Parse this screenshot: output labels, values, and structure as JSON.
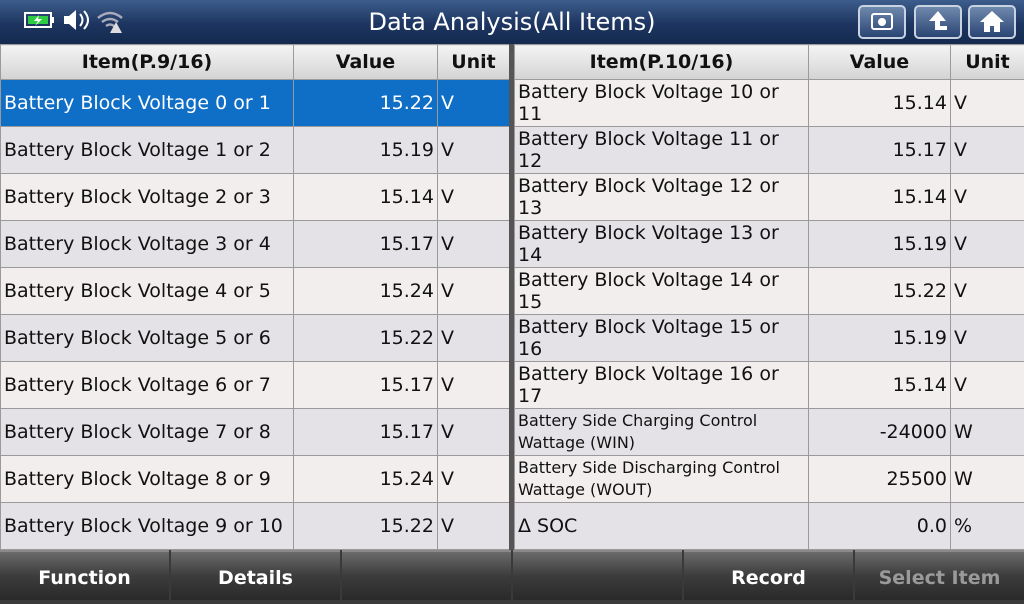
{
  "header": {
    "title": "Data Analysis(All Items)"
  },
  "tables": [
    {
      "headers": [
        "Item(P.9/16)",
        "Value",
        "Unit"
      ],
      "rows": [
        [
          "Battery Block Voltage 0 or 1",
          "15.22",
          "V"
        ],
        [
          "Battery Block Voltage 1 or 2",
          "15.19",
          "V"
        ],
        [
          "Battery Block Voltage 2 or 3",
          "15.14",
          "V"
        ],
        [
          "Battery Block Voltage 3 or 4",
          "15.17",
          "V"
        ],
        [
          "Battery Block Voltage 4 or 5",
          "15.24",
          "V"
        ],
        [
          "Battery Block Voltage 5 or 6",
          "15.22",
          "V"
        ],
        [
          "Battery Block Voltage 6 or 7",
          "15.17",
          "V"
        ],
        [
          "Battery Block Voltage 7 or 8",
          "15.17",
          "V"
        ],
        [
          "Battery Block Voltage 8 or 9",
          "15.24",
          "V"
        ],
        [
          "Battery Block Voltage 9 or 10",
          "15.22",
          "V"
        ]
      ]
    },
    {
      "headers": [
        "Item(P.10/16)",
        "Value",
        "Unit"
      ],
      "rows": [
        [
          "Battery Block Voltage 10 or 11",
          "15.14",
          "V"
        ],
        [
          "Battery Block Voltage 11 or 12",
          "15.17",
          "V"
        ],
        [
          "Battery Block Voltage 12 or 13",
          "15.14",
          "V"
        ],
        [
          "Battery Block Voltage 13 or 14",
          "15.19",
          "V"
        ],
        [
          "Battery Block Voltage 14 or 15",
          "15.22",
          "V"
        ],
        [
          "Battery Block Voltage 15 or 16",
          "15.19",
          "V"
        ],
        [
          "Battery Block Voltage 16 or 17",
          "15.14",
          "V"
        ],
        [
          "Battery Side Charging Control Wattage (WIN)",
          "-24000",
          "W"
        ],
        [
          "Battery Side Discharging Control Wattage (WOUT)",
          "25500",
          "W"
        ],
        [
          "Δ SOC",
          "0.0",
          "%"
        ]
      ]
    }
  ],
  "footer": {
    "buttons": {
      "0": "Function",
      "1": "Details",
      "4": "Record",
      "5": "Select Item"
    }
  }
}
